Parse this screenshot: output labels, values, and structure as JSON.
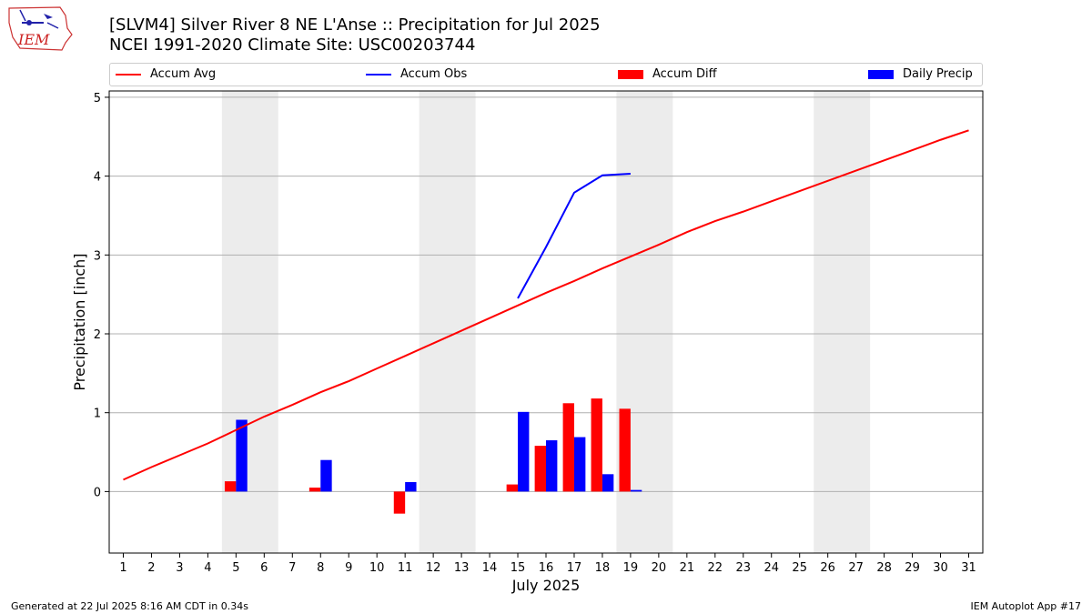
{
  "header": {
    "title_line1": "[SLVM4] Silver River 8 NE L'Anse :: Precipitation for Jul 2025",
    "title_line2": "NCEI 1991-2020 Climate Site: USC00203744",
    "logo_text": "IEM"
  },
  "footer": {
    "generated": "Generated at 22 Jul 2025 8:16 AM CDT in 0.34s",
    "app": "IEM Autoplot App #17"
  },
  "chart_data": {
    "type": "bar",
    "xlabel": "July 2025",
    "ylabel": "Precipitation [inch]",
    "xlim": [
      0.5,
      31.5
    ],
    "ylim": [
      -0.78,
      5.08
    ],
    "x_ticks": [
      1,
      2,
      3,
      4,
      5,
      6,
      7,
      8,
      9,
      10,
      11,
      12,
      13,
      14,
      15,
      16,
      17,
      18,
      19,
      20,
      21,
      22,
      23,
      24,
      25,
      26,
      27,
      28,
      29,
      30,
      31
    ],
    "y_ticks": [
      0,
      1,
      2,
      3,
      4,
      5
    ],
    "grid": "horizontal",
    "weekend_shading": [
      [
        4.5,
        6.5
      ],
      [
        11.5,
        13.5
      ],
      [
        18.5,
        20.5
      ],
      [
        25.5,
        27.5
      ]
    ],
    "legend_position": "top",
    "legend": [
      {
        "name": "Accum Avg",
        "kind": "line",
        "color": "#ff0000"
      },
      {
        "name": "Accum Obs",
        "kind": "line",
        "color": "#0000ff"
      },
      {
        "name": "Accum Diff",
        "kind": "bar",
        "color": "#ff0000"
      },
      {
        "name": "Daily Precip",
        "kind": "bar",
        "color": "#0000ff"
      }
    ],
    "series": [
      {
        "name": "Accum Avg",
        "kind": "line",
        "color": "#ff0000",
        "x": [
          1,
          2,
          3,
          4,
          5,
          6,
          7,
          8,
          9,
          10,
          11,
          12,
          13,
          14,
          15,
          16,
          17,
          18,
          19,
          20,
          21,
          22,
          23,
          24,
          25,
          26,
          27,
          28,
          29,
          30,
          31
        ],
        "values": [
          0.15,
          0.31,
          0.46,
          0.61,
          0.78,
          0.95,
          1.1,
          1.26,
          1.4,
          1.56,
          1.72,
          1.88,
          2.04,
          2.2,
          2.36,
          2.52,
          2.67,
          2.83,
          2.98,
          3.13,
          3.29,
          3.43,
          3.55,
          3.68,
          3.81,
          3.94,
          4.07,
          4.2,
          4.33,
          4.46,
          4.58
        ]
      },
      {
        "name": "Accum Obs",
        "kind": "line",
        "color": "#0000ff",
        "x": [
          15,
          16,
          17,
          18,
          19
        ],
        "values": [
          2.45,
          3.1,
          3.79,
          4.01,
          4.03
        ]
      },
      {
        "name": "Accum Diff",
        "kind": "bar",
        "color": "#ff0000",
        "x": [
          5,
          8,
          11,
          15,
          16,
          17,
          18,
          19
        ],
        "values": [
          0.13,
          0.05,
          -0.28,
          0.09,
          0.58,
          1.12,
          1.18,
          1.05
        ]
      },
      {
        "name": "Daily Precip",
        "kind": "bar",
        "color": "#0000ff",
        "x": [
          5,
          8,
          11,
          15,
          16,
          17,
          18,
          19
        ],
        "values": [
          0.91,
          0.4,
          0.12,
          1.01,
          0.65,
          0.69,
          0.22,
          0.02
        ]
      }
    ]
  }
}
